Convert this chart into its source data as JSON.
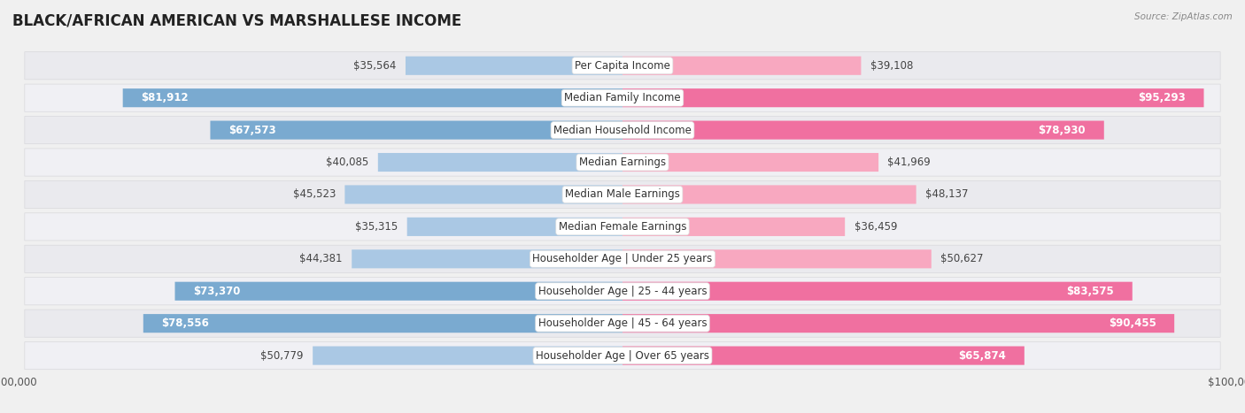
{
  "title": "BLACK/AFRICAN AMERICAN VS MARSHALLESE INCOME",
  "source": "Source: ZipAtlas.com",
  "categories": [
    "Per Capita Income",
    "Median Family Income",
    "Median Household Income",
    "Median Earnings",
    "Median Male Earnings",
    "Median Female Earnings",
    "Householder Age | Under 25 years",
    "Householder Age | 25 - 44 years",
    "Householder Age | 45 - 64 years",
    "Householder Age | Over 65 years"
  ],
  "black_values": [
    35564,
    81912,
    67573,
    40085,
    45523,
    35315,
    44381,
    73370,
    78556,
    50779
  ],
  "marshallese_values": [
    39108,
    95293,
    78930,
    41969,
    48137,
    36459,
    50627,
    83575,
    90455,
    65874
  ],
  "black_labels": [
    "$35,564",
    "$81,912",
    "$67,573",
    "$40,085",
    "$45,523",
    "$35,315",
    "$44,381",
    "$73,370",
    "$78,556",
    "$50,779"
  ],
  "marshallese_labels": [
    "$39,108",
    "$95,293",
    "$78,930",
    "$41,969",
    "$48,137",
    "$36,459",
    "$50,627",
    "$83,575",
    "$90,455",
    "$65,874"
  ],
  "black_color_light": "#b8d0e8",
  "black_color_mid": "#9ab8d8",
  "marshallese_color_light": "#f8b8cc",
  "marshallese_color_mid": "#f090b0",
  "black_color_large": "#8ab0d8",
  "marshallese_color_large": "#f080a8",
  "max_value": 100000,
  "bar_height": 0.58,
  "background_color": "#f0f0f0",
  "row_bg": "#e8e8ec",
  "row_bg_alt": "#ececf0",
  "label_fontsize": 8.5,
  "category_fontsize": 8.5,
  "title_fontsize": 12,
  "large_threshold": 55000,
  "label_inside_threshold": 20000
}
